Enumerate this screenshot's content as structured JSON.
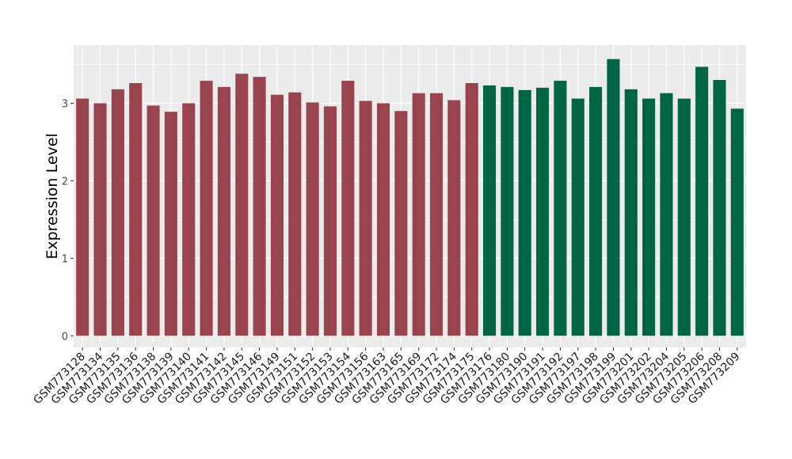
{
  "chart_data": {
    "type": "bar",
    "ylabel": "Expression Level",
    "xlabel": "",
    "ylim": [
      -0.15,
      3.75
    ],
    "yticks": [
      0,
      1,
      2,
      3
    ],
    "grid": true,
    "panel_bg": "#ebebeb",
    "grid_color": "#ffffff",
    "series_colors": [
      "#99434f",
      "#006545"
    ],
    "categories": [
      "GSM773128",
      "GSM773134",
      "GSM773135",
      "GSM773136",
      "GSM773138",
      "GSM773139",
      "GSM773140",
      "GSM773141",
      "GSM773142",
      "GSM773145",
      "GSM773146",
      "GSM773149",
      "GSM773151",
      "GSM773152",
      "GSM773153",
      "GSM773154",
      "GSM773156",
      "GSM773163",
      "GSM773165",
      "GSM773169",
      "GSM773172",
      "GSM773174",
      "GSM773175",
      "GSM773176",
      "GSM773180",
      "GSM773190",
      "GSM773191",
      "GSM773192",
      "GSM773197",
      "GSM773198",
      "GSM773199",
      "GSM773201",
      "GSM773202",
      "GSM773204",
      "GSM773205",
      "GSM773206",
      "GSM773208",
      "GSM773209"
    ],
    "values": [
      3.06,
      3.0,
      3.18,
      3.26,
      2.97,
      2.89,
      3.0,
      3.29,
      3.21,
      3.38,
      3.34,
      3.11,
      3.14,
      3.01,
      2.96,
      3.29,
      3.03,
      3.0,
      2.9,
      3.13,
      3.13,
      3.04,
      3.26,
      3.23,
      3.21,
      3.17,
      3.2,
      3.29,
      3.06,
      3.21,
      3.57,
      3.18,
      3.06,
      3.13,
      3.06,
      3.47,
      3.3,
      2.93
    ],
    "groups": [
      0,
      0,
      0,
      0,
      0,
      0,
      0,
      0,
      0,
      0,
      0,
      0,
      0,
      0,
      0,
      0,
      0,
      0,
      0,
      0,
      0,
      0,
      0,
      1,
      1,
      1,
      1,
      1,
      1,
      1,
      1,
      1,
      1,
      1,
      1,
      1,
      1,
      1
    ]
  }
}
